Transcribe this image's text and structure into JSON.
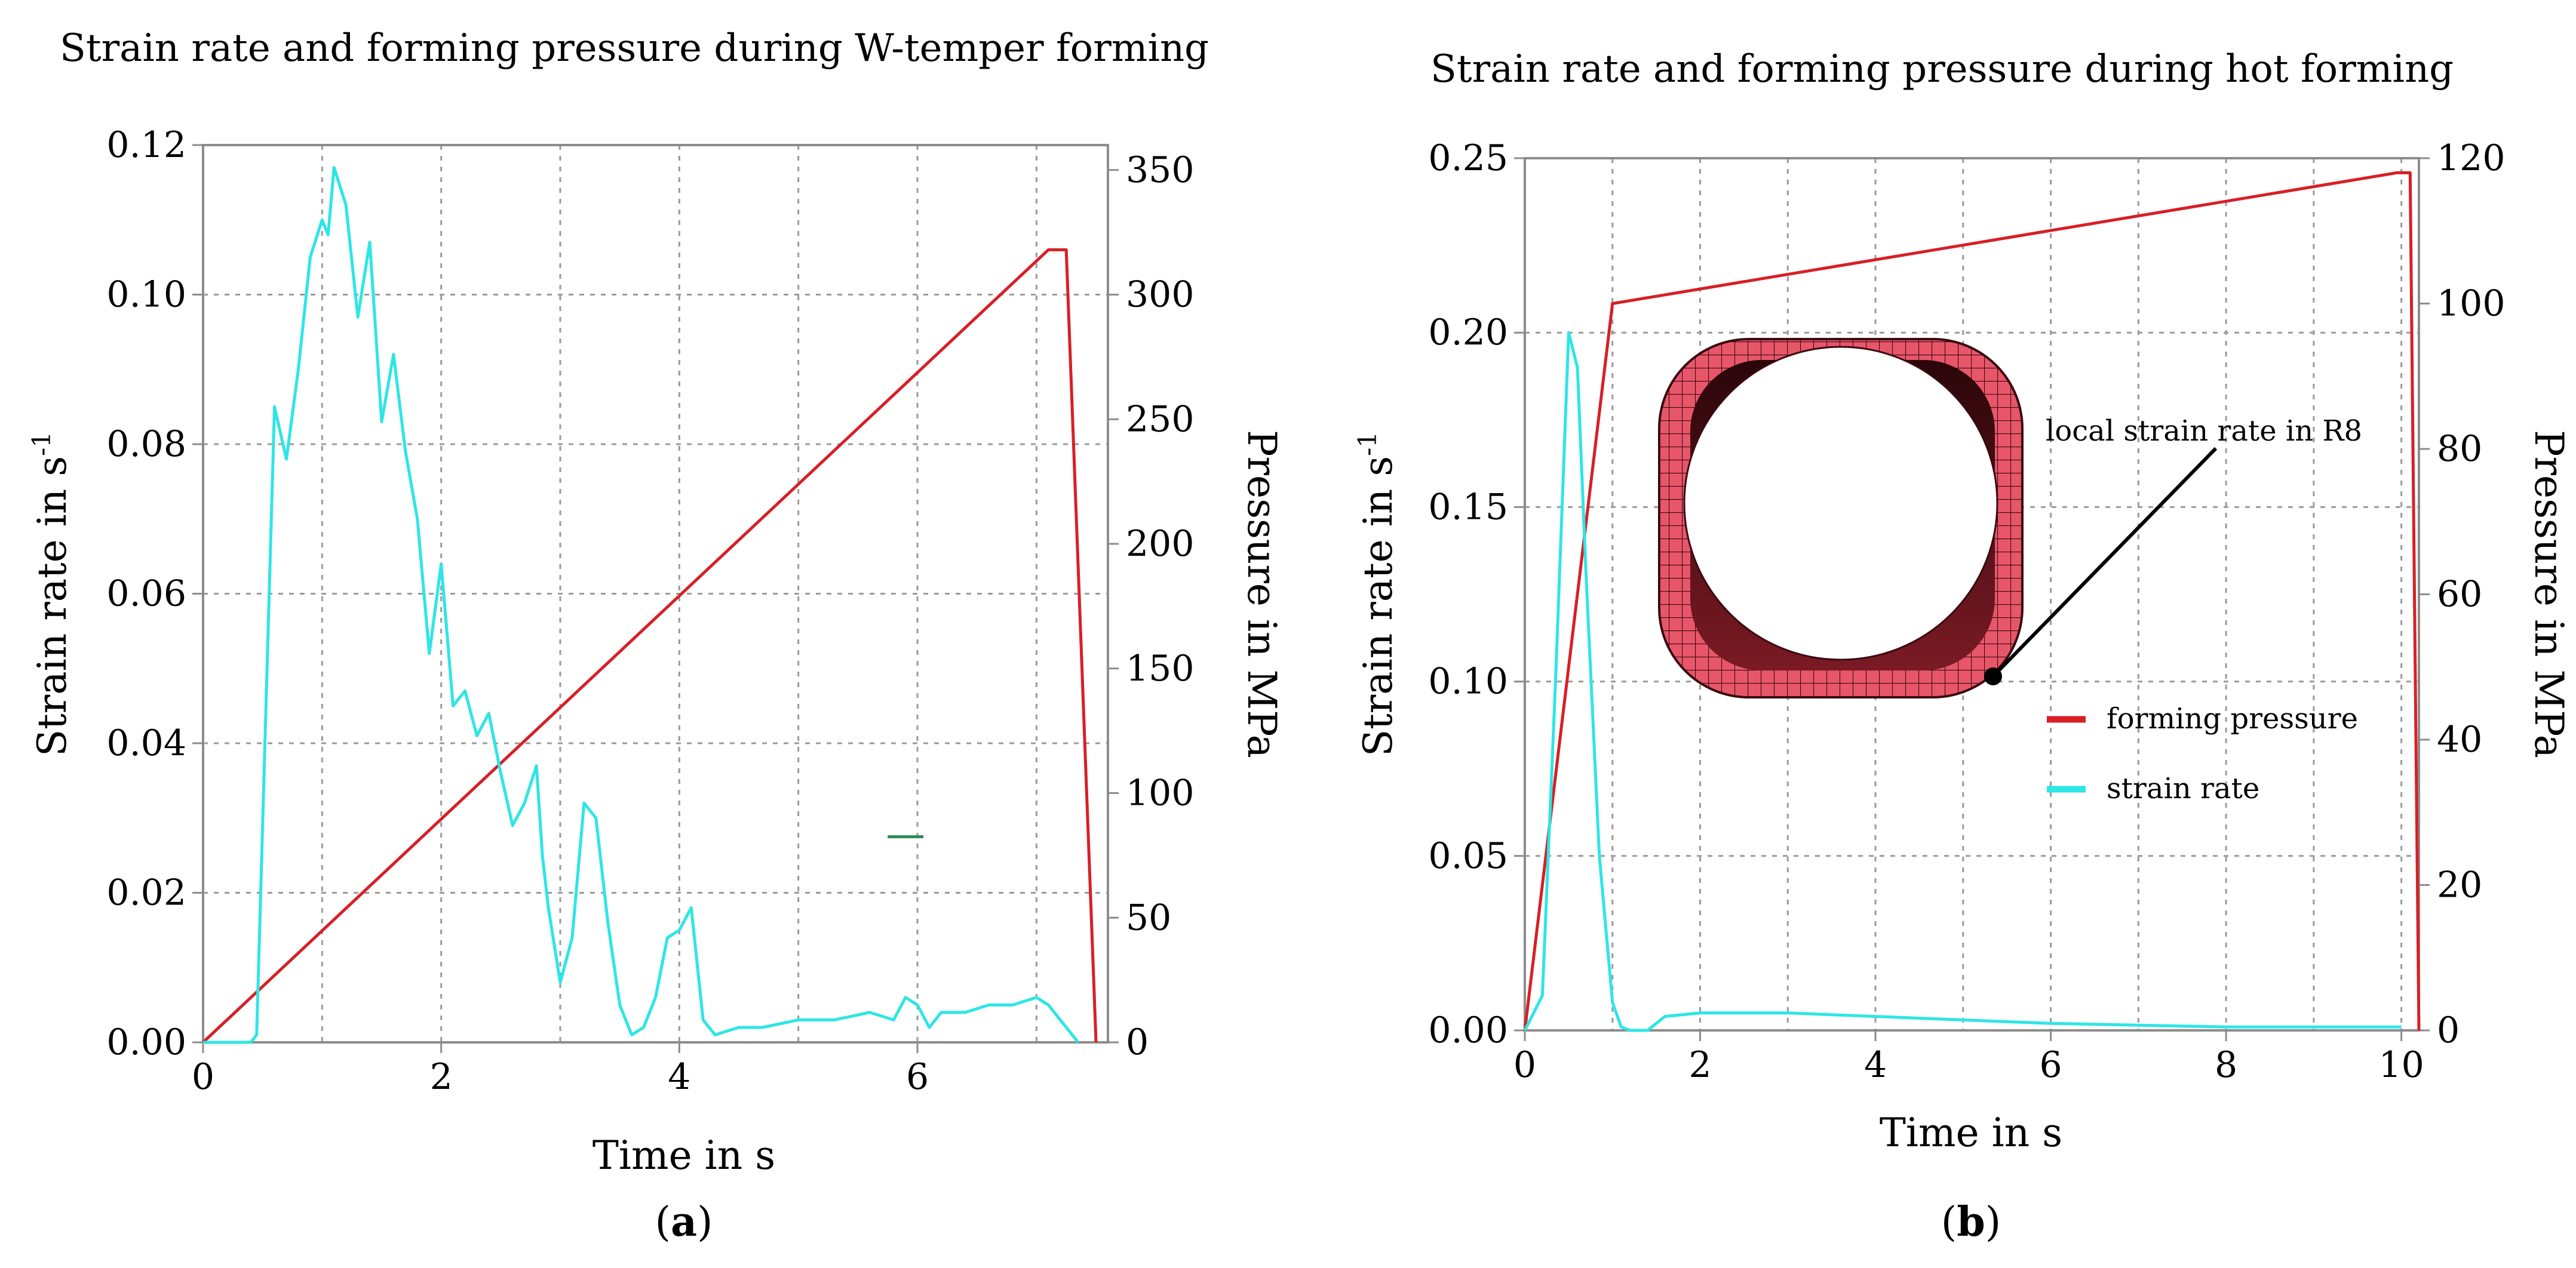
{
  "chart_data": [
    {
      "type": "line",
      "title": "Strain rate and forming pressure during W-temper forming",
      "xlabel": "Time in s",
      "ylabel": "Strain rate in s",
      "ylabel_sup": "-1",
      "y2label": "Pressure in MPa",
      "panel_label": "a",
      "xlim": [
        0,
        7.6
      ],
      "ylim": [
        0,
        0.12
      ],
      "y2lim": [
        0,
        360
      ],
      "x_ticks": [
        0,
        2,
        4,
        6
      ],
      "x_ticks_text": [
        "0",
        "2",
        "4",
        "6"
      ],
      "y_ticks": [
        0,
        0.02,
        0.04,
        0.06,
        0.08,
        0.1,
        0.12
      ],
      "y_ticks_text": [
        "0.00",
        "0.02",
        "0.04",
        "0.06",
        "0.08",
        "0.10",
        "0.12"
      ],
      "y2_ticks": [
        0,
        50,
        100,
        150,
        200,
        250,
        300,
        350
      ],
      "y2_ticks_text": [
        "0",
        "50",
        "100",
        "150",
        "200",
        "250",
        "300",
        "350"
      ],
      "colors": {
        "forming_pressure": "#d81f26",
        "strain_rate": "#2ee6e6",
        "marker": "#2e8b57"
      },
      "series": [
        {
          "name": "forming pressure",
          "axis": "right",
          "x": [
            0,
            7.1,
            7.25,
            7.5
          ],
          "y": [
            0,
            318,
            318,
            0
          ]
        },
        {
          "name": "strain rate",
          "axis": "left",
          "x": [
            0,
            0.4,
            0.45,
            0.6,
            0.7,
            0.8,
            0.9,
            1.0,
            1.05,
            1.1,
            1.2,
            1.3,
            1.4,
            1.5,
            1.6,
            1.7,
            1.8,
            1.9,
            2.0,
            2.1,
            2.2,
            2.3,
            2.4,
            2.5,
            2.6,
            2.7,
            2.8,
            2.85,
            2.9,
            3.0,
            3.1,
            3.2,
            3.3,
            3.4,
            3.5,
            3.6,
            3.7,
            3.8,
            3.9,
            4.0,
            4.1,
            4.2,
            4.3,
            4.5,
            4.7,
            5.0,
            5.3,
            5.6,
            5.8,
            5.9,
            6.0,
            6.1,
            6.2,
            6.4,
            6.6,
            6.8,
            7.0,
            7.1,
            7.2,
            7.3,
            7.35
          ],
          "y": [
            0,
            0,
            0.001,
            0.085,
            0.078,
            0.09,
            0.105,
            0.11,
            0.108,
            0.117,
            0.112,
            0.097,
            0.107,
            0.083,
            0.092,
            0.079,
            0.07,
            0.052,
            0.064,
            0.045,
            0.047,
            0.041,
            0.044,
            0.036,
            0.029,
            0.032,
            0.037,
            0.025,
            0.018,
            0.008,
            0.014,
            0.032,
            0.03,
            0.016,
            0.005,
            0.001,
            0.002,
            0.006,
            0.014,
            0.015,
            0.018,
            0.003,
            0.001,
            0.002,
            0.002,
            0.003,
            0.003,
            0.004,
            0.003,
            0.006,
            0.005,
            0.002,
            0.004,
            0.004,
            0.005,
            0.005,
            0.006,
            0.005,
            0.003,
            0.001,
            0
          ]
        }
      ],
      "marker_segment": {
        "x": [
          5.75,
          6.05
        ],
        "y": 0.0275
      }
    },
    {
      "type": "line",
      "title": "Strain rate and forming pressure during hot forming",
      "xlabel": "Time in s",
      "ylabel": "Strain rate in s",
      "ylabel_sup": "-1",
      "y2label": "Pressure in MPa",
      "panel_label": "b",
      "xlim": [
        0,
        10.2
      ],
      "ylim": [
        0,
        0.25
      ],
      "y2lim": [
        0,
        120
      ],
      "x_ticks": [
        0,
        2,
        4,
        6,
        8,
        10
      ],
      "x_ticks_text": [
        "0",
        "2",
        "4",
        "6",
        "8",
        "10"
      ],
      "y_ticks": [
        0,
        0.05,
        0.1,
        0.15,
        0.2,
        0.25
      ],
      "y_ticks_text": [
        "0.00",
        "0.05",
        "0.10",
        "0.15",
        "0.20",
        "0.25"
      ],
      "y2_ticks": [
        0,
        20,
        40,
        60,
        80,
        100,
        120
      ],
      "y2_ticks_text": [
        "0",
        "20",
        "40",
        "60",
        "80",
        "100",
        "120"
      ],
      "colors": {
        "forming_pressure": "#d81f26",
        "strain_rate": "#2ee6e6"
      },
      "series": [
        {
          "name": "forming pressure",
          "axis": "right",
          "x": [
            0,
            1.0,
            9.95,
            10.1,
            10.2
          ],
          "y": [
            0,
            100,
            118,
            118,
            0
          ]
        },
        {
          "name": "strain rate",
          "axis": "left",
          "x": [
            0,
            0.2,
            0.35,
            0.5,
            0.6,
            0.7,
            0.85,
            1.0,
            1.1,
            1.2,
            1.4,
            1.6,
            2.0,
            3.0,
            4.0,
            5.0,
            6.0,
            8.0,
            10.0
          ],
          "y": [
            0,
            0.01,
            0.1,
            0.2,
            0.19,
            0.13,
            0.05,
            0.008,
            0.001,
            0.0,
            0.0,
            0.004,
            0.005,
            0.005,
            0.004,
            0.003,
            0.002,
            0.001,
            0.001
          ]
        }
      ],
      "legend": {
        "position": "right",
        "entries": [
          "forming pressure",
          "strain rate"
        ]
      },
      "annotation": "local strain rate in R8"
    }
  ]
}
